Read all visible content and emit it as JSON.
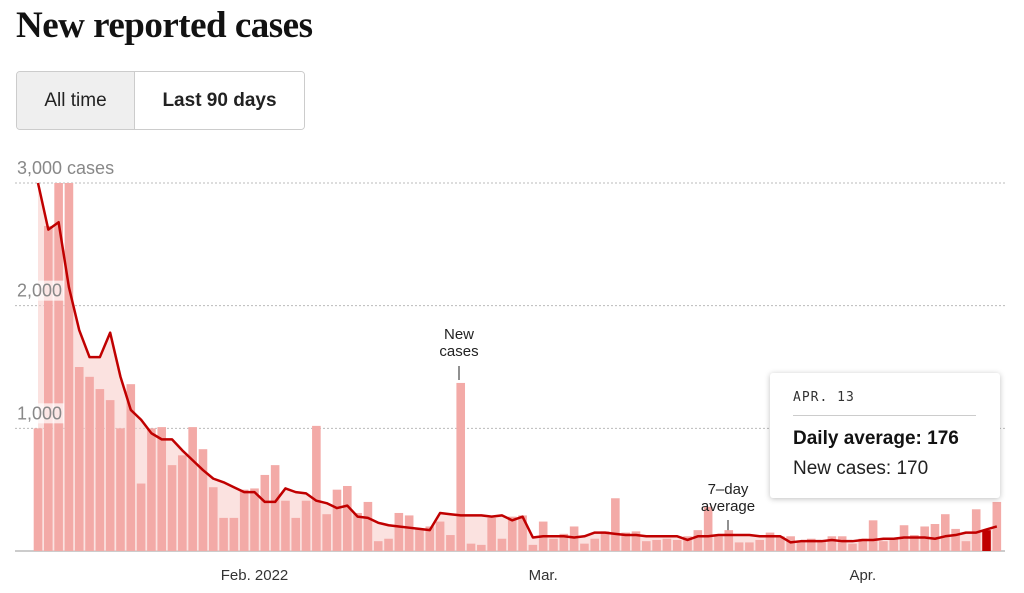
{
  "title": "New reported cases",
  "buttons": [
    "All time",
    "Last 90 days"
  ],
  "chart_data": {
    "type": "bar_line",
    "categories": [
      null,
      null,
      null,
      null,
      null,
      null,
      null,
      null,
      null,
      null,
      null,
      null,
      null,
      null,
      null,
      null,
      null,
      null,
      null,
      null,
      null,
      "Feb. 2022",
      null,
      null,
      null,
      null,
      null,
      null,
      null,
      null,
      null,
      null,
      null,
      null,
      null,
      null,
      null,
      null,
      null,
      null,
      null,
      null,
      null,
      null,
      null,
      null,
      null,
      null,
      null,
      "Mar.",
      null,
      null,
      null,
      null,
      null,
      null,
      null,
      null,
      null,
      null,
      null,
      null,
      null,
      null,
      null,
      null,
      null,
      null,
      null,
      null,
      null,
      null,
      null,
      null,
      null,
      null,
      null,
      null,
      null,
      null,
      "Apr.",
      null,
      null,
      null,
      null,
      null,
      null,
      null,
      null,
      null,
      null,
      null,
      null,
      null
    ],
    "series": [
      {
        "name": "New cases",
        "type": "bar",
        "color": "#f3aaa7",
        "values": [
          1000,
          2650,
          3000,
          3000,
          1500,
          1420,
          1320,
          1230,
          1000,
          1360,
          550,
          1000,
          1010,
          700,
          780,
          1010,
          830,
          520,
          270,
          270,
          500,
          510,
          620,
          700,
          410,
          270,
          410,
          1020,
          300,
          500,
          530,
          310,
          400,
          80,
          100,
          310,
          290,
          180,
          200,
          240,
          130,
          1370,
          60,
          50,
          270,
          100,
          280,
          290,
          50,
          240,
          100,
          140,
          200,
          60,
          100,
          160,
          430,
          150,
          160,
          80,
          90,
          100,
          90,
          120,
          170,
          360,
          120,
          170,
          70,
          70,
          90,
          150,
          120,
          120,
          80,
          100,
          90,
          120,
          120,
          60,
          100,
          250,
          80,
          100,
          210,
          130,
          200,
          220,
          300,
          180,
          80,
          340,
          170,
          400
        ]
      },
      {
        "name": "7–day average",
        "type": "line",
        "color": "#c00000",
        "values": [
          3000,
          2620,
          2680,
          2150,
          1800,
          1580,
          1580,
          1780,
          1420,
          1150,
          1070,
          960,
          910,
          910,
          820,
          740,
          660,
          590,
          560,
          520,
          480,
          480,
          400,
          400,
          510,
          480,
          470,
          410,
          390,
          350,
          370,
          280,
          270,
          230,
          210,
          200,
          190,
          180,
          170,
          310,
          300,
          290,
          290,
          290,
          280,
          290,
          250,
          280,
          110,
          120,
          120,
          120,
          110,
          120,
          150,
          150,
          140,
          130,
          130,
          120,
          120,
          120,
          120,
          90,
          120,
          120,
          130,
          130,
          130,
          130,
          120,
          120,
          120,
          70,
          80,
          80,
          80,
          90,
          80,
          80,
          90,
          90,
          100,
          100,
          110,
          110,
          110,
          100,
          120,
          130,
          150,
          150,
          176,
          200
        ]
      }
    ],
    "ylim": [
      0,
      3000
    ],
    "yticks": [
      {
        "value": 1000,
        "label": "1,000"
      },
      {
        "value": 2000,
        "label": "2,000"
      },
      {
        "value": 3000,
        "label": "3,000 cases"
      }
    ],
    "grid": true,
    "area_color": "#f9cfcc",
    "tooltip": {
      "index": 92,
      "date": "APR. 13",
      "average_label": "Daily average:",
      "cases_label": "New cases:",
      "highlight_color": "#c00000"
    }
  }
}
